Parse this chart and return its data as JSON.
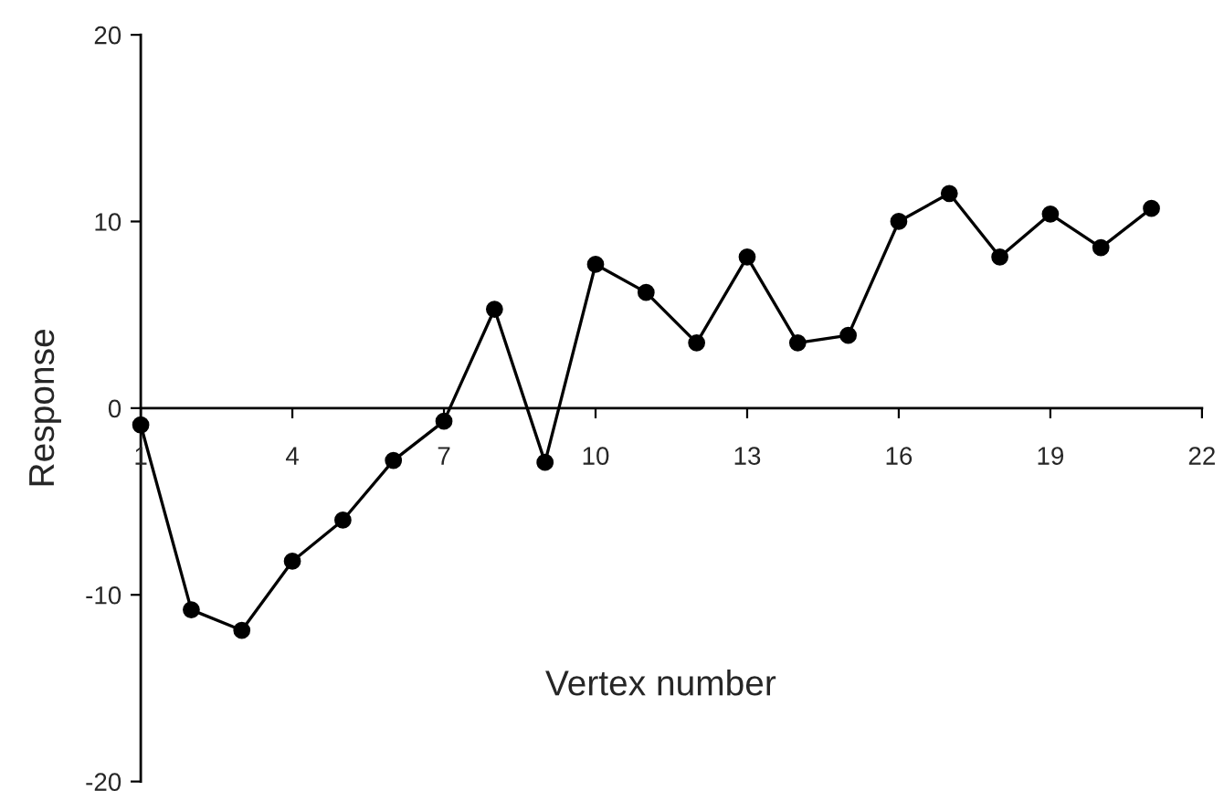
{
  "chart_data": {
    "type": "line",
    "xlabel": "Vertex number",
    "ylabel": "Response",
    "x": [
      1,
      2,
      3,
      4,
      5,
      6,
      7,
      8,
      9,
      10,
      11,
      12,
      13,
      14,
      15,
      16,
      17,
      18,
      19,
      20,
      21
    ],
    "series": [
      {
        "color": "#000000",
        "values": [
          -0.9,
          -10.8,
          -11.9,
          -8.2,
          -6.0,
          -2.8,
          -0.7,
          5.3,
          -2.9,
          7.7,
          6.2,
          3.5,
          8.1,
          3.5,
          3.9,
          10.0,
          11.5,
          8.1,
          10.4,
          8.6,
          10.7
        ]
      }
    ],
    "xlim": [
      1,
      22
    ],
    "xticks": [
      1,
      4,
      7,
      10,
      13,
      16,
      19,
      22
    ],
    "ylim": [
      -20,
      20
    ],
    "yticks": [
      {
        "value": -20,
        "label": "-20"
      },
      {
        "value": -10,
        "label": "-10"
      },
      0,
      10,
      20
    ],
    "marker": "circle",
    "line_style": "solid",
    "grid": false,
    "legend": false
  }
}
